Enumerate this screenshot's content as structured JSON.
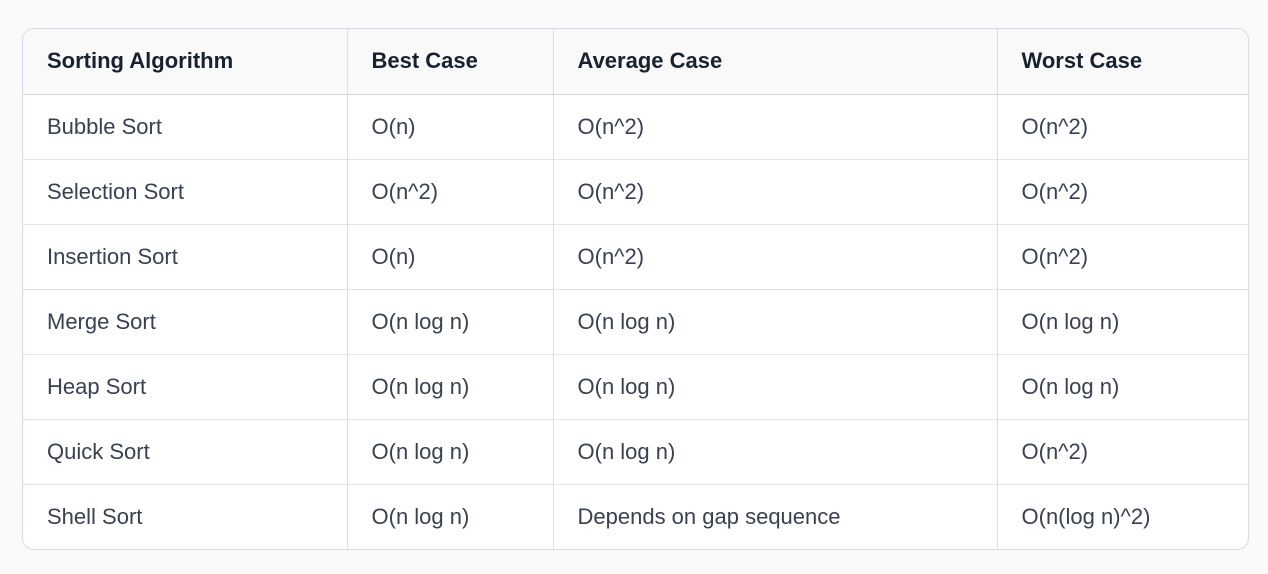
{
  "chart_data": {
    "type": "table",
    "columns": [
      "Sorting Algorithm",
      "Best Case",
      "Average Case",
      "Worst Case"
    ],
    "rows": [
      [
        "Bubble Sort",
        "O(n)",
        "O(n^2)",
        "O(n^2)"
      ],
      [
        "Selection Sort",
        "O(n^2)",
        "O(n^2)",
        "O(n^2)"
      ],
      [
        "Insertion Sort",
        "O(n)",
        "O(n^2)",
        "O(n^2)"
      ],
      [
        "Merge Sort",
        "O(n log n)",
        "O(n log n)",
        "O(n log n)"
      ],
      [
        "Heap Sort",
        "O(n log n)",
        "O(n log n)",
        "O(n log n)"
      ],
      [
        "Quick Sort",
        "O(n log n)",
        "O(n log n)",
        "O(n^2)"
      ],
      [
        "Shell Sort",
        "O(n log n)",
        "Depends on gap sequence",
        "O(n(log n)^2)"
      ]
    ]
  },
  "colors": {
    "page_background": "#fafafa",
    "table_background": "#ffffff",
    "header_background": "#f9f9f9",
    "outer_border": "#d9d9e3",
    "row_divider": "#e3e3e8",
    "column_divider": "#dcdce3",
    "header_text": "#18212f",
    "body_text": "#394150"
  }
}
